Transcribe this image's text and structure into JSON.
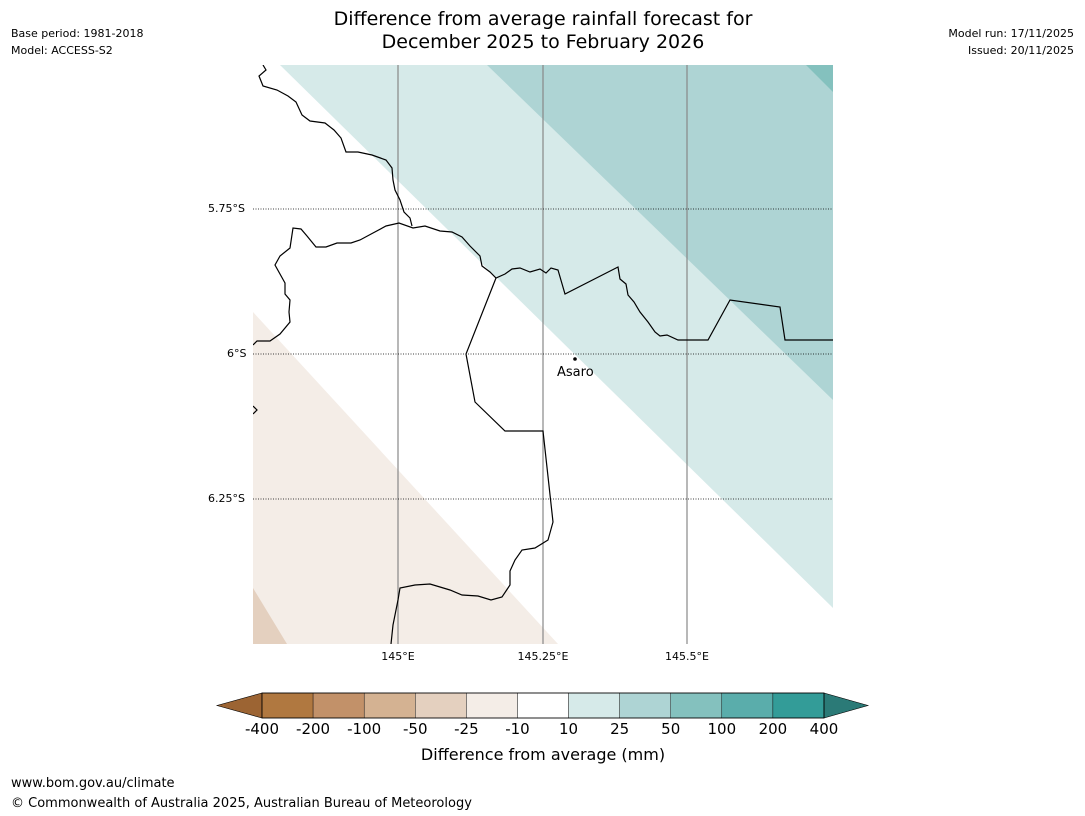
{
  "header": {
    "title_line1": "Difference from average rainfall forecast for",
    "title_line2": "December 2025 to February 2026",
    "base_period": "Base period: 1981-2018",
    "model": "Model: ACCESS-S2",
    "model_run": "Model run: 17/11/2025",
    "issued": "Issued: 20/11/2025"
  },
  "map": {
    "lat_labels": [
      "5.75°S",
      "6°S",
      "6.25°S"
    ],
    "lon_labels": [
      "145°E",
      "145.25°E",
      "145.5°E"
    ],
    "place": {
      "name": "Asaro"
    }
  },
  "colorbar": {
    "title": "Difference from average (mm)",
    "labels": [
      "-400",
      "-200",
      "-100",
      "-50",
      "-25",
      "-10",
      "10",
      "25",
      "50",
      "100",
      "200",
      "400"
    ],
    "colors": [
      "#9c6433",
      "#b07840",
      "#c29169",
      "#d4b292",
      "#e4d0bf",
      "#f4ede7",
      "#ffffff",
      "#d6eae9",
      "#aed4d4",
      "#84c1be",
      "#5aadab",
      "#339c98",
      "#2b7a77"
    ]
  },
  "footer": {
    "url": "www.bom.gov.au/climate",
    "copyright": "© Commonwealth of Australia 2025, Australian Bureau of Meteorology"
  }
}
